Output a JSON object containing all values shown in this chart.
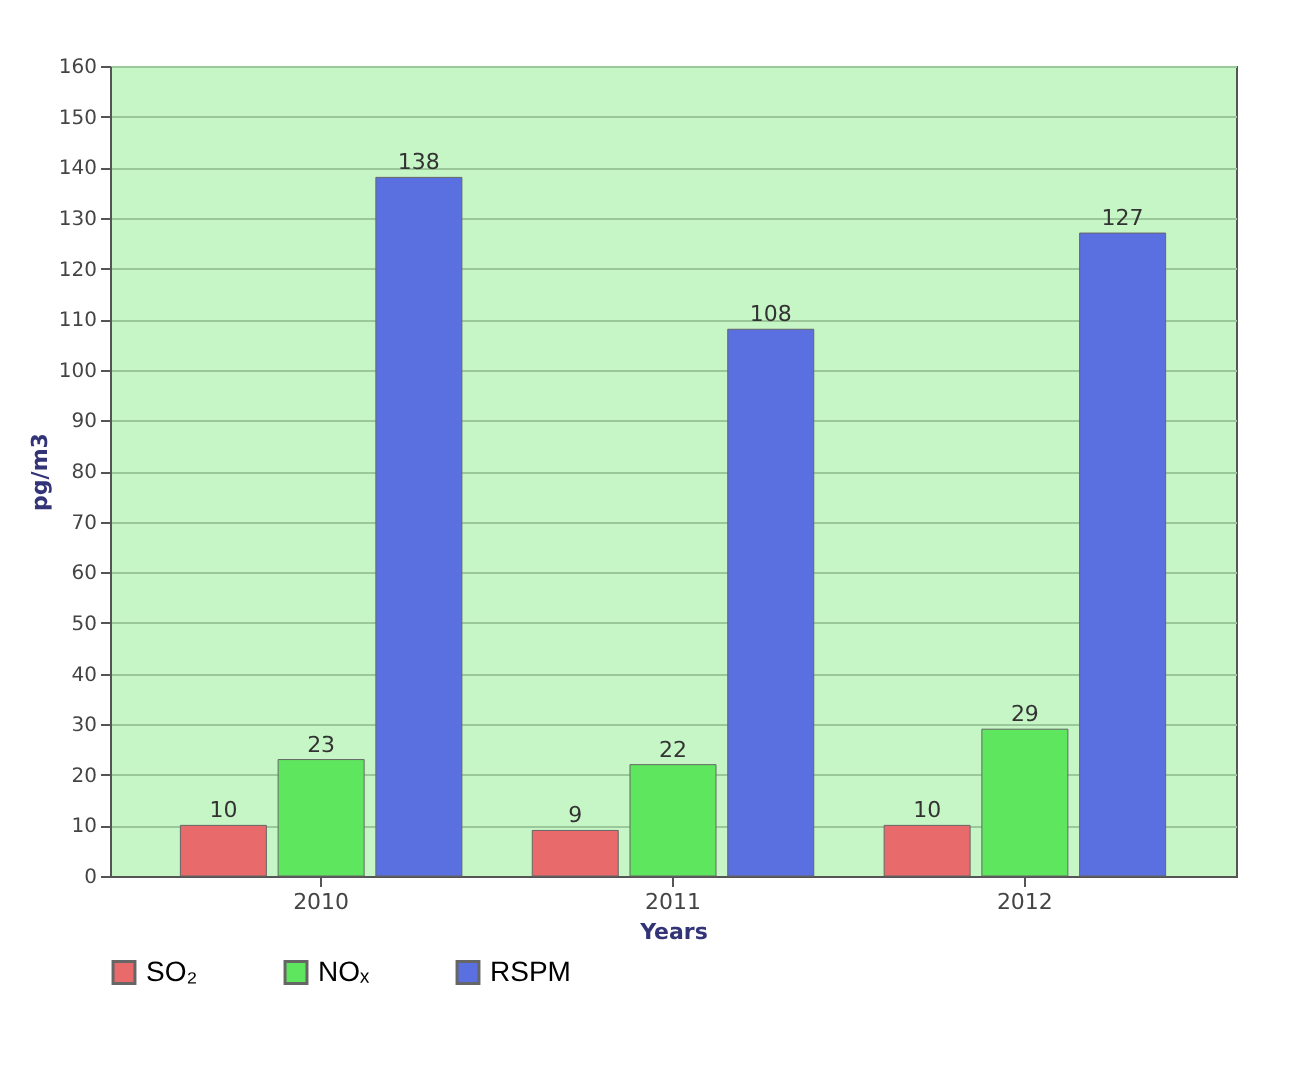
{
  "chart_data": {
    "type": "bar",
    "xlabel": "Years",
    "ylabel": "pg/m3",
    "categories": [
      "2010",
      "2011",
      "2012"
    ],
    "series": [
      {
        "name": "SO₂",
        "color": "#e86a6a",
        "values": [
          10,
          9,
          10
        ]
      },
      {
        "name": "NOₓ",
        "color": "#5ee65e",
        "values": [
          23,
          22,
          29
        ]
      },
      {
        "name": "RSPM",
        "color": "#5a6fe0",
        "values": [
          138,
          108,
          127
        ]
      }
    ],
    "ylim": [
      0,
      160
    ],
    "yticks": [
      0,
      10,
      20,
      30,
      40,
      50,
      60,
      70,
      80,
      90,
      100,
      110,
      120,
      130,
      140,
      150,
      160
    ],
    "grid": "y",
    "legend": "bottom left",
    "data_labels": true
  }
}
